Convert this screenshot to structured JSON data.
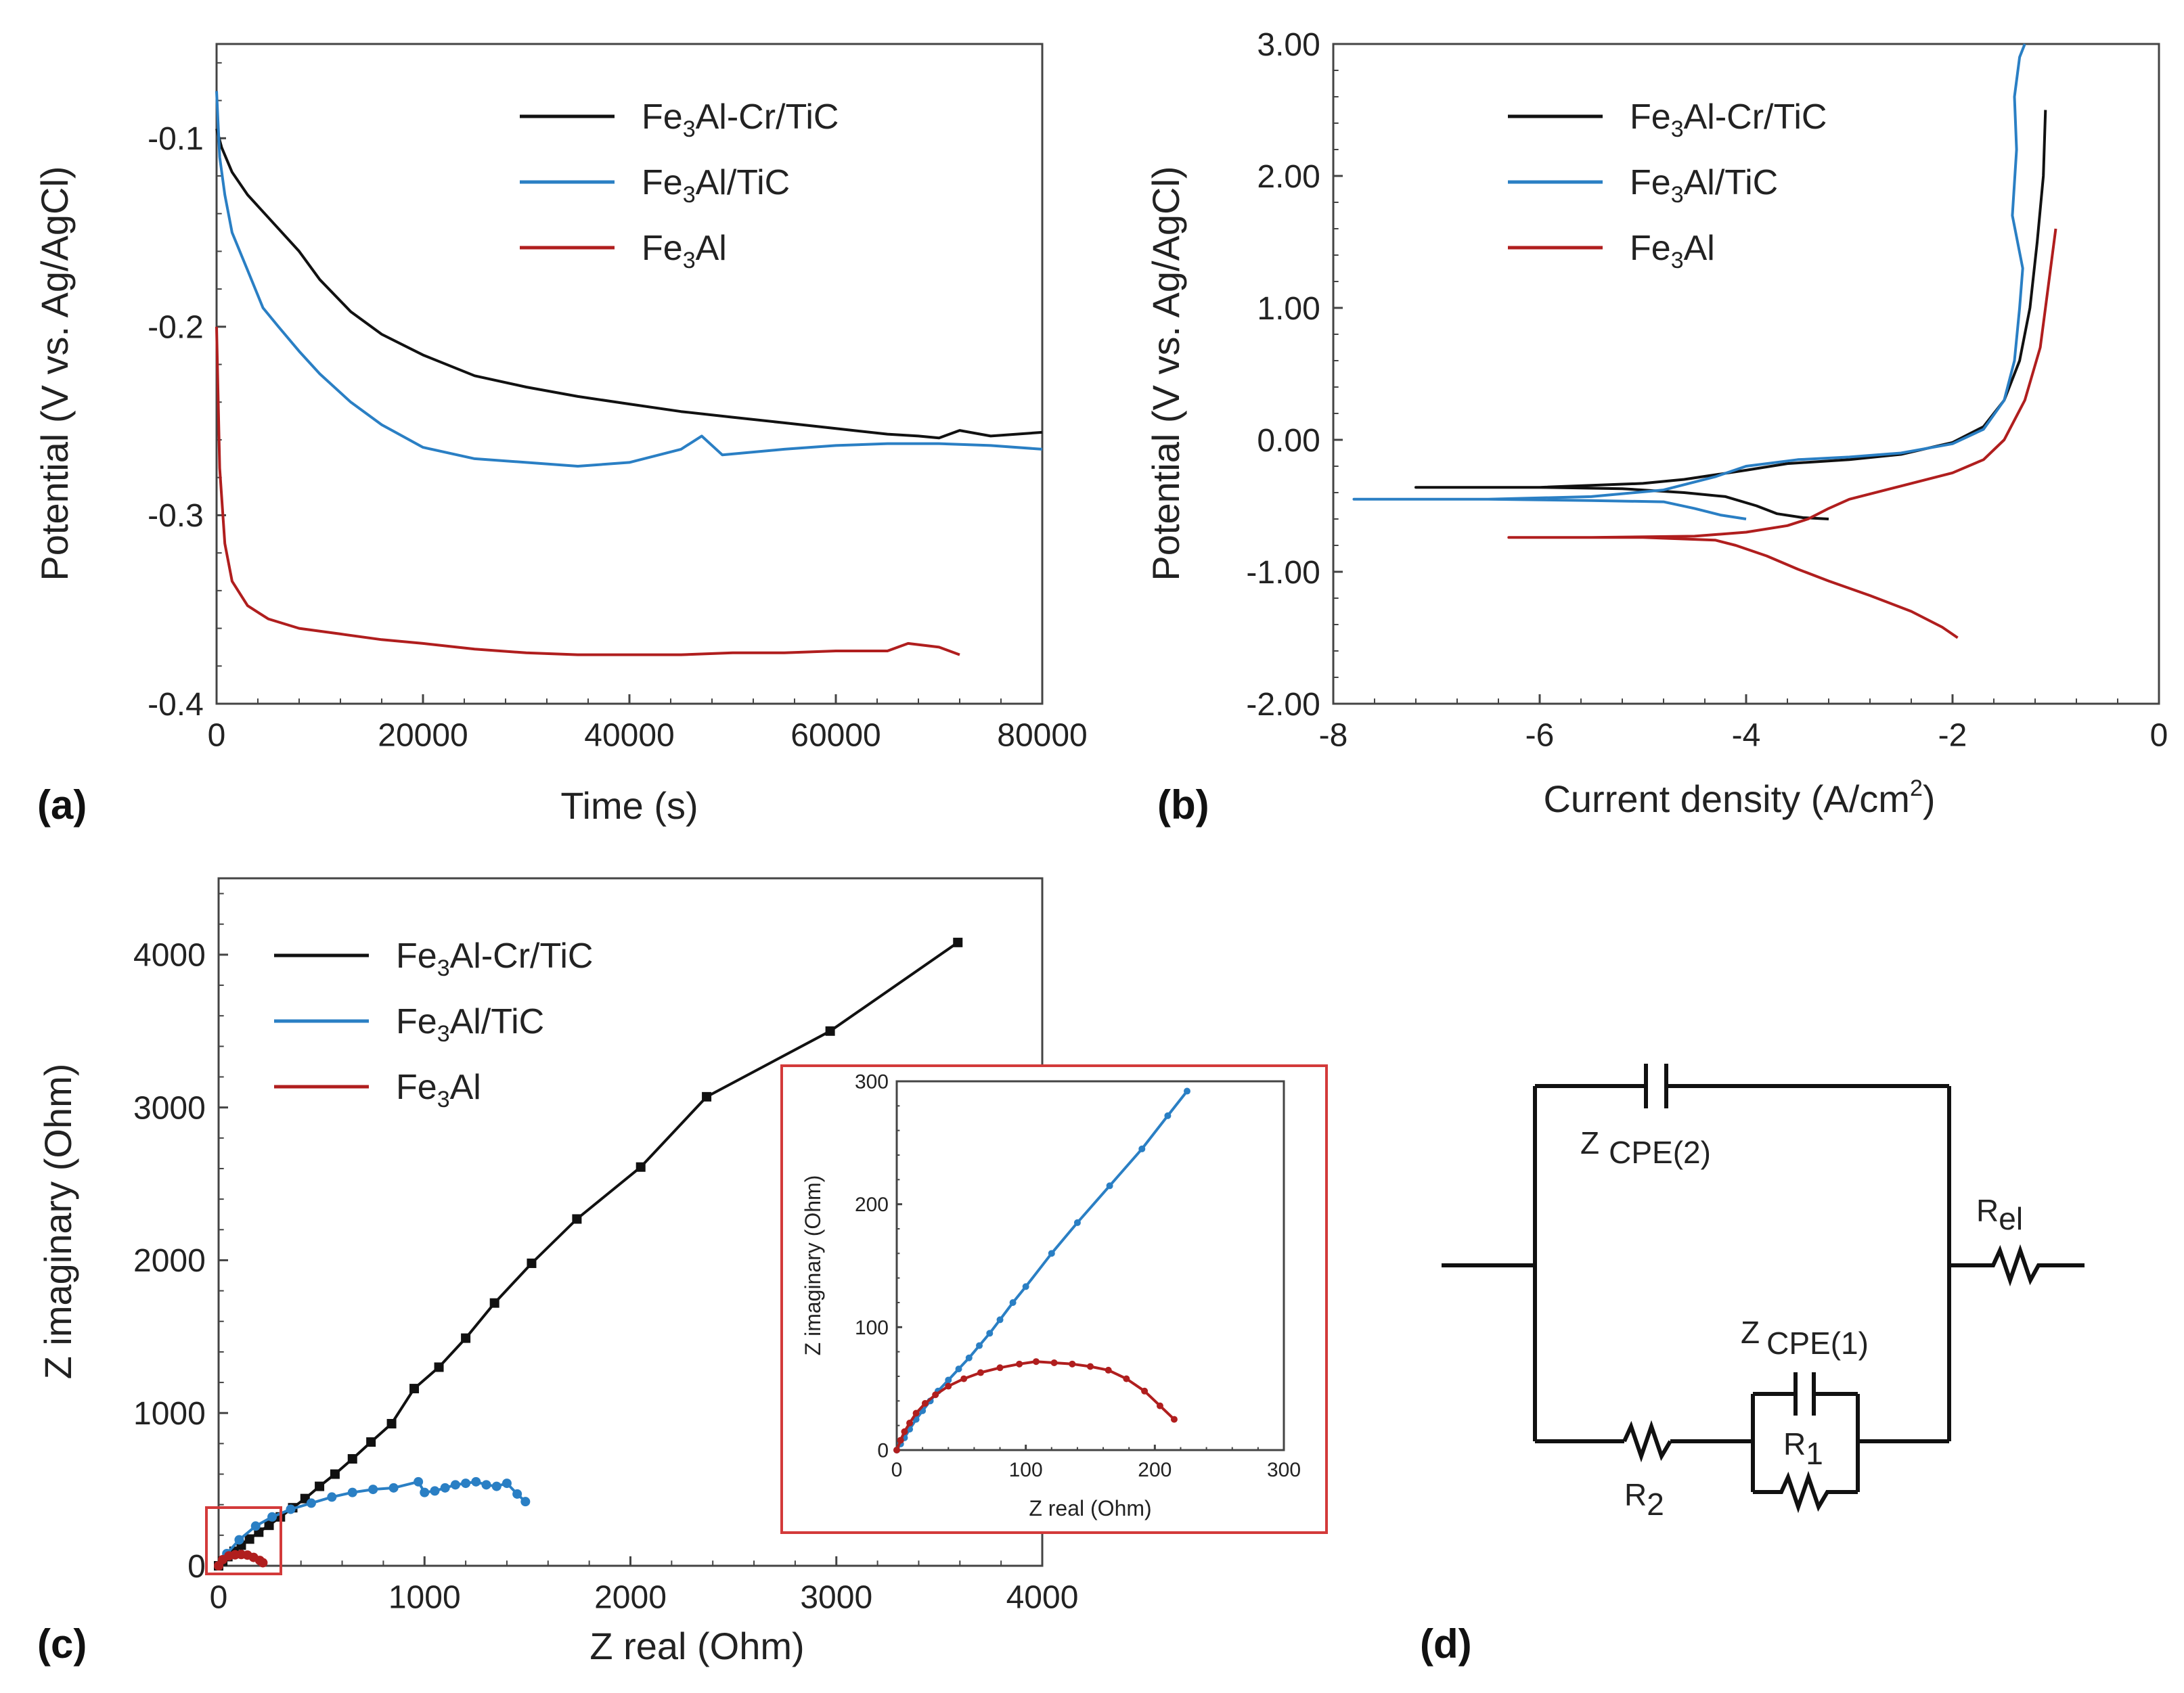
{
  "colors": {
    "black": "#111111",
    "blue": "#2a7fc4",
    "red": "#b01e1e",
    "inset_border": "#d33a3a"
  },
  "panels": {
    "a": "(a)",
    "b": "(b)",
    "c": "(c)",
    "d": "(d)"
  },
  "legend": [
    {
      "key": "fe3al_cr_tic",
      "pre": "Fe",
      "sub": "3",
      "post": "Al-Cr/TiC",
      "color": "#111111"
    },
    {
      "key": "fe3al_tic",
      "pre": "Fe",
      "sub": "3",
      "post": "Al/TiC",
      "color": "#2a7fc4"
    },
    {
      "key": "fe3al",
      "pre": "Fe",
      "sub": "3",
      "post": "Al",
      "color": "#b01e1e"
    }
  ],
  "chart_data": [
    {
      "id": "a",
      "type": "line",
      "xlabel": "Time (s)",
      "ylabel": "Potential (V vs. Ag/AgCl)",
      "xlim": [
        0,
        80000
      ],
      "ylim": [
        -0.4,
        -0.05
      ],
      "xticks": [
        0,
        20000,
        40000,
        60000,
        80000
      ],
      "xtick_labels": [
        "0",
        "20000",
        "40000",
        "60000",
        "80000"
      ],
      "yticks": [
        -0.1,
        -0.2,
        -0.3,
        -0.4
      ],
      "ytick_labels": [
        "-0.1",
        "-0.2",
        "-0.3",
        "-0.4"
      ],
      "series": [
        {
          "name": "Fe3Al-Cr/TiC",
          "color": "#111111",
          "x": [
            0,
            500,
            1500,
            3000,
            5000,
            8000,
            10000,
            13000,
            16000,
            20000,
            25000,
            30000,
            35000,
            40000,
            45000,
            50000,
            55000,
            60000,
            65000,
            68000,
            70000,
            72000,
            75000,
            80000
          ],
          "y": [
            -0.095,
            -0.105,
            -0.118,
            -0.13,
            -0.142,
            -0.16,
            -0.175,
            -0.192,
            -0.204,
            -0.215,
            -0.226,
            -0.232,
            -0.237,
            -0.241,
            -0.245,
            -0.248,
            -0.251,
            -0.254,
            -0.257,
            -0.258,
            -0.259,
            -0.255,
            -0.258,
            -0.256
          ]
        },
        {
          "name": "Fe3Al/TiC",
          "color": "#2a7fc4",
          "x": [
            0,
            300,
            800,
            1500,
            3000,
            4500,
            6000,
            8000,
            10000,
            13000,
            16000,
            20000,
            25000,
            30000,
            35000,
            40000,
            45000,
            47000,
            49000,
            55000,
            60000,
            65000,
            70000,
            75000,
            80000
          ],
          "y": [
            -0.075,
            -0.11,
            -0.13,
            -0.15,
            -0.17,
            -0.19,
            -0.2,
            -0.213,
            -0.225,
            -0.24,
            -0.252,
            -0.264,
            -0.27,
            -0.272,
            -0.274,
            -0.272,
            -0.265,
            -0.258,
            -0.268,
            -0.265,
            -0.263,
            -0.262,
            -0.262,
            -0.263,
            -0.265
          ]
        },
        {
          "name": "Fe3Al",
          "color": "#b01e1e",
          "x": [
            0,
            300,
            800,
            1500,
            3000,
            5000,
            8000,
            12000,
            16000,
            20000,
            25000,
            30000,
            35000,
            40000,
            45000,
            50000,
            55000,
            60000,
            65000,
            67000,
            70000,
            72000
          ],
          "y": [
            -0.2,
            -0.275,
            -0.315,
            -0.335,
            -0.348,
            -0.355,
            -0.36,
            -0.363,
            -0.366,
            -0.368,
            -0.371,
            -0.373,
            -0.374,
            -0.374,
            -0.374,
            -0.373,
            -0.373,
            -0.372,
            -0.372,
            -0.368,
            -0.37,
            -0.374
          ]
        }
      ]
    },
    {
      "id": "b",
      "type": "line",
      "xlabel": "Current density (A/cm",
      "xlabel_sup": "2",
      "xlabel_end": ")",
      "ylabel": "Potential (V vs. Ag/AgCl)",
      "xlim": [
        -8,
        0
      ],
      "ylim": [
        -2.0,
        3.0
      ],
      "xticks": [
        -8,
        -6,
        -4,
        -2,
        0
      ],
      "xtick_labels": [
        "-8",
        "-6",
        "-4",
        "-2",
        "0"
      ],
      "yticks": [
        3,
        2,
        1,
        0,
        -1,
        -2
      ],
      "ytick_labels": [
        "3.00",
        "2.00",
        "1.00",
        "0.00",
        "-1.00",
        "-2.00"
      ],
      "series": [
        {
          "name": "Fe3Al-Cr/TiC",
          "color": "#111111",
          "x": [
            -3.2,
            -3.45,
            -3.7,
            -3.9,
            -4.2,
            -4.6,
            -5.2,
            -6.0,
            -7.2,
            -6.0,
            -5.0,
            -4.6,
            -4.0,
            -3.6,
            -3.0,
            -2.5,
            -2.0,
            -1.7,
            -1.5,
            -1.35,
            -1.25,
            -1.18,
            -1.12,
            -1.1
          ],
          "y": [
            -0.6,
            -0.59,
            -0.56,
            -0.5,
            -0.43,
            -0.4,
            -0.37,
            -0.36,
            -0.36,
            -0.36,
            -0.33,
            -0.3,
            -0.23,
            -0.18,
            -0.15,
            -0.11,
            -0.02,
            0.1,
            0.3,
            0.6,
            1.0,
            1.5,
            2.0,
            2.5
          ]
        },
        {
          "name": "Fe3Al/TiC",
          "color": "#2a7fc4",
          "x": [
            -4.0,
            -4.25,
            -4.5,
            -4.8,
            -5.5,
            -6.5,
            -7.8,
            -6.5,
            -5.5,
            -4.8,
            -4.3,
            -4.0,
            -3.5,
            -3.0,
            -2.5,
            -2.0,
            -1.7,
            -1.5,
            -1.4,
            -1.35,
            -1.32,
            -1.42,
            -1.38,
            -1.4,
            -1.35,
            -1.3
          ],
          "y": [
            -0.6,
            -0.57,
            -0.52,
            -0.47,
            -0.46,
            -0.45,
            -0.45,
            -0.45,
            -0.43,
            -0.38,
            -0.28,
            -0.2,
            -0.15,
            -0.13,
            -0.1,
            -0.03,
            0.08,
            0.3,
            0.6,
            1.0,
            1.3,
            1.7,
            2.2,
            2.6,
            2.9,
            3.0
          ]
        },
        {
          "name": "Fe3Al",
          "color": "#b01e1e",
          "x": [
            -1.95,
            -2.1,
            -2.4,
            -2.8,
            -3.2,
            -3.5,
            -3.8,
            -4.1,
            -4.3,
            -5.0,
            -5.7,
            -6.3,
            -5.5,
            -4.5,
            -4.0,
            -3.6,
            -3.4,
            -3.2,
            -3.0,
            -2.5,
            -2.0,
            -1.7,
            -1.5,
            -1.3,
            -1.15,
            -1.1,
            -1.05,
            -1.0
          ],
          "y": [
            -1.5,
            -1.42,
            -1.3,
            -1.18,
            -1.07,
            -0.98,
            -0.88,
            -0.8,
            -0.76,
            -0.74,
            -0.74,
            -0.74,
            -0.74,
            -0.73,
            -0.7,
            -0.65,
            -0.6,
            -0.52,
            -0.45,
            -0.35,
            -0.25,
            -0.15,
            0.0,
            0.3,
            0.7,
            1.0,
            1.3,
            1.6
          ]
        }
      ]
    },
    {
      "id": "c",
      "type": "scatter",
      "xlabel": "Z real (Ohm)",
      "ylabel": "Z imaginary (Ohm)",
      "xlim": [
        0,
        4000
      ],
      "ylim": [
        0,
        4500
      ],
      "xticks": [
        0,
        1000,
        2000,
        3000,
        4000
      ],
      "xtick_labels": [
        "0",
        "1000",
        "2000",
        "3000",
        "4000"
      ],
      "yticks": [
        0,
        1000,
        2000,
        3000,
        4000
      ],
      "ytick_labels": [
        "0",
        "1000",
        "2000",
        "3000",
        "4000"
      ],
      "series": [
        {
          "name": "Fe3Al-Cr/TiC",
          "color": "#111111",
          "marker": "square",
          "x": [
            0,
            20,
            45,
            75,
            110,
            150,
            195,
            245,
            300,
            360,
            420,
            490,
            565,
            650,
            740,
            840,
            950,
            1070,
            1200,
            1340,
            1520,
            1740,
            2050,
            2370,
            2970,
            3590
          ],
          "y": [
            0,
            30,
            60,
            95,
            135,
            175,
            220,
            265,
            320,
            380,
            440,
            520,
            600,
            700,
            810,
            930,
            1160,
            1300,
            1490,
            1720,
            1980,
            2270,
            2610,
            3070,
            3500,
            4080
          ]
        },
        {
          "name": "Fe3Al/TiC",
          "color": "#2a7fc4",
          "marker": "circle",
          "x": [
            0,
            40,
            100,
            180,
            260,
            350,
            450,
            550,
            650,
            750,
            850,
            970,
            1000,
            1050,
            1100,
            1150,
            1200,
            1250,
            1300,
            1350,
            1400,
            1450,
            1490
          ],
          "y": [
            0,
            80,
            170,
            260,
            320,
            370,
            410,
            450,
            480,
            500,
            510,
            550,
            480,
            490,
            510,
            530,
            540,
            550,
            530,
            520,
            540,
            470,
            420
          ]
        },
        {
          "name": "Fe3Al",
          "color": "#b01e1e",
          "marker": "circle",
          "x": [
            0,
            20,
            50,
            80,
            110,
            140,
            170,
            200,
            215
          ],
          "y": [
            0,
            40,
            65,
            72,
            74,
            70,
            55,
            35,
            20
          ]
        }
      ]
    },
    {
      "id": "c_inset",
      "type": "scatter",
      "xlabel": "Z real (Ohm)",
      "ylabel": "Z imaginary (Ohm)",
      "xlim": [
        0,
        300
      ],
      "ylim": [
        0,
        300
      ],
      "xticks": [
        0,
        100,
        200,
        300
      ],
      "xtick_labels": [
        "0",
        "100",
        "200",
        "300"
      ],
      "yticks": [
        0,
        100,
        200,
        300
      ],
      "ytick_labels": [
        "0",
        "100",
        "200",
        "300"
      ],
      "series": [
        {
          "name": "Fe3Al/TiC",
          "color": "#2a7fc4",
          "x": [
            0,
            3,
            6,
            10,
            15,
            20,
            26,
            32,
            40,
            48,
            56,
            64,
            72,
            80,
            90,
            100,
            120,
            140,
            165,
            190,
            210,
            225
          ],
          "y": [
            0,
            5,
            10,
            17,
            25,
            32,
            40,
            48,
            57,
            66,
            75,
            85,
            95,
            106,
            120,
            133,
            160,
            185,
            215,
            245,
            272,
            292
          ]
        },
        {
          "name": "Fe3Al",
          "color": "#b01e1e",
          "x": [
            0,
            3,
            6,
            10,
            15,
            22,
            30,
            40,
            52,
            65,
            80,
            95,
            108,
            122,
            136,
            150,
            164,
            178,
            192,
            204,
            215
          ],
          "y": [
            0,
            8,
            15,
            22,
            30,
            38,
            45,
            52,
            58,
            63,
            67,
            70,
            72,
            71,
            70,
            68,
            65,
            58,
            48,
            36,
            25
          ]
        }
      ]
    }
  ],
  "circuit": {
    "cpe2_main": "Z",
    "cpe2_sub": "CPE(2)",
    "cpe1_main": "Z",
    "cpe1_sub": "CPE(1)",
    "rel_main": "R",
    "rel_sub": "el",
    "r1_main": "R",
    "r1_sub": "1",
    "r2_main": "R",
    "r2_sub": "2"
  }
}
